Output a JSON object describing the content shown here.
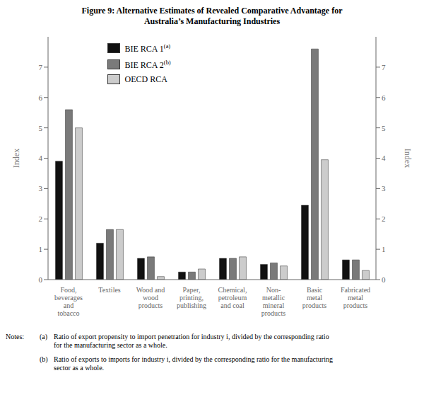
{
  "chart_data": {
    "type": "bar",
    "title": "Figure 9: Alternative Estimates of Revealed Comparative Advantage for\nAustralia’s Manufacturing Industries",
    "categories": [
      "Food,\nbeverages\nand\ntobacco",
      "Textiles",
      "Wood and\nwood\nproducts",
      "Paper,\nprinting,\npublishing",
      "Chemical,\npetroleum\nand coal",
      "Non-\nmetallic\nmineral\nproducts",
      "Basic\nmetal\nproducts",
      "Fabricated\nmetal\nproducts"
    ],
    "series": [
      {
        "name": "BIE RCA 1(a)",
        "color": "#111111",
        "values": [
          3.9,
          1.2,
          0.7,
          0.25,
          0.7,
          0.5,
          2.45,
          0.65
        ]
      },
      {
        "name": "BIE RCA 2(b)",
        "color": "#7a7a7a",
        "values": [
          5.6,
          1.65,
          0.75,
          0.25,
          0.7,
          0.55,
          7.6,
          0.65
        ]
      },
      {
        "name": "OECD RCA",
        "color": "#cccccc",
        "values": [
          5.0,
          1.65,
          0.1,
          0.35,
          0.75,
          0.45,
          3.95,
          0.3
        ]
      }
    ],
    "ylim": [
      0,
      8
    ],
    "yticks": [
      0,
      1,
      2,
      3,
      4,
      5,
      6,
      7
    ],
    "ylabel": "Index",
    "y2lim": [
      0,
      8
    ],
    "y2ticks": [
      0,
      1,
      2,
      3,
      4,
      5,
      6,
      7
    ],
    "y2label": "Index",
    "legend": "upper left",
    "grid": false,
    "annotations": {
      "heading": "Notes:",
      "items": [
        {
          "label": "(a)",
          "text": "Ratio of export propensity to import penetration for industry i, divided by the corresponding ratio\nfor the manufacturing sector as a whole."
        },
        {
          "label": "(b)",
          "text": "Ratio of exports to imports for industry i, divided by the corresponding ratio for the manufacturing\nsector as a whole."
        }
      ]
    }
  }
}
